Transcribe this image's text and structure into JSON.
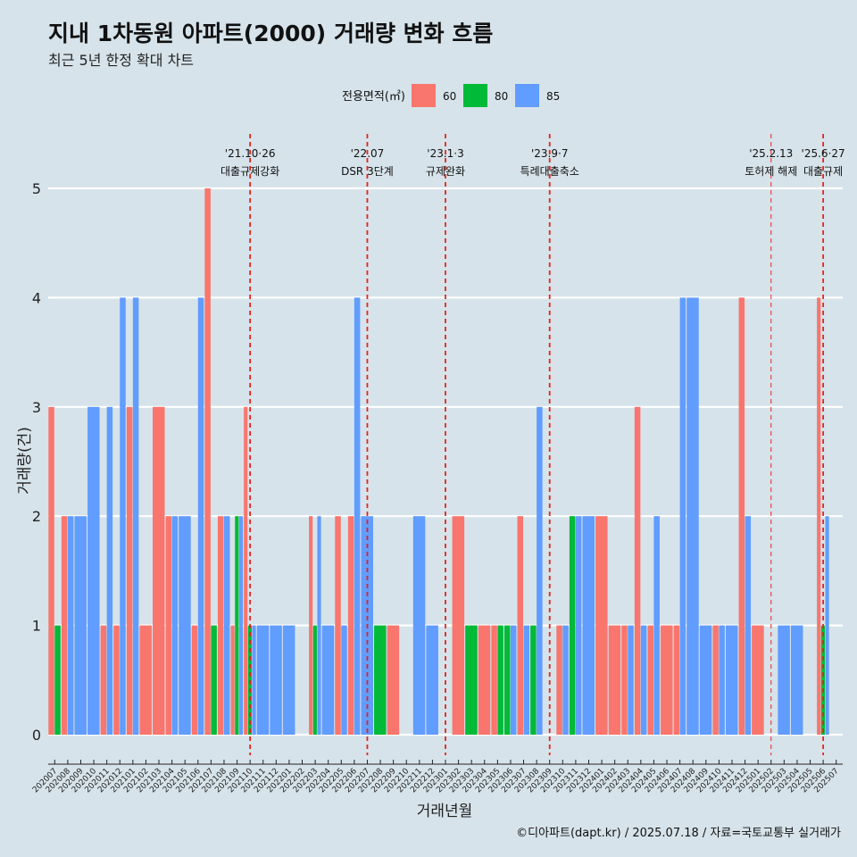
{
  "title": "지내 1차동원 아파트(2000) 거래량 변화 흐름",
  "subtitle": "최근 5년 한정 확대 차트",
  "caption": "©디아파트(dapt.kr) / 2025.07.18 / 자료=국토교통부 실거래가",
  "chart_data": {
    "type": "bar",
    "xlabel": "거래년월",
    "ylabel": "거래량(건)",
    "ylim": [
      0,
      5
    ],
    "yticks": [
      "0",
      "1",
      "2",
      "3",
      "4",
      "5"
    ],
    "legend": {
      "title": "전용면적(㎡)",
      "position": "top",
      "items": [
        {
          "name": "60",
          "color": "#f8766d"
        },
        {
          "name": "80",
          "color": "#00ba38"
        },
        {
          "name": "85",
          "color": "#619cff"
        }
      ]
    },
    "categories": [
      "202007",
      "202008",
      "202009",
      "202010",
      "202011",
      "202012",
      "202101",
      "202102",
      "202103",
      "202104",
      "202105",
      "202106",
      "202107",
      "202108",
      "202109",
      "202110",
      "202111",
      "202112",
      "202201",
      "202202",
      "202203",
      "202204",
      "202205",
      "202206",
      "202207",
      "202208",
      "202209",
      "202210",
      "202211",
      "202212",
      "202301",
      "202302",
      "202303",
      "202304",
      "202305",
      "202306",
      "202307",
      "202308",
      "202309",
      "202310",
      "202311",
      "202312",
      "202401",
      "202402",
      "202403",
      "202404",
      "202405",
      "202406",
      "202407",
      "202408",
      "202409",
      "202410",
      "202411",
      "202412",
      "202501",
      "202502",
      "202503",
      "202504",
      "202505",
      "202506",
      "202507"
    ],
    "series": [
      {
        "name": "60",
        "values": [
          3,
          2,
          0,
          0,
          1,
          1,
          3,
          1,
          3,
          2,
          0,
          1,
          5,
          2,
          1,
          3,
          0,
          0,
          0,
          0,
          2,
          0,
          2,
          2,
          0,
          0,
          1,
          0,
          0,
          0,
          0,
          2,
          0,
          1,
          1,
          0,
          2,
          0,
          0,
          1,
          0,
          0,
          2,
          1,
          1,
          3,
          1,
          1,
          1,
          0,
          0,
          1,
          0,
          4,
          1,
          0,
          0,
          0,
          0,
          4,
          0
        ]
      },
      {
        "name": "80",
        "values": [
          1,
          0,
          0,
          0,
          0,
          0,
          0,
          0,
          0,
          0,
          0,
          0,
          1,
          0,
          2,
          1,
          0,
          0,
          0,
          0,
          1,
          0,
          0,
          0,
          0,
          1,
          0,
          0,
          0,
          0,
          0,
          0,
          1,
          0,
          1,
          1,
          0,
          1,
          0,
          0,
          2,
          0,
          0,
          0,
          0,
          0,
          0,
          0,
          0,
          0,
          0,
          0,
          0,
          0,
          0,
          0,
          0,
          0,
          0,
          1,
          0
        ]
      },
      {
        "name": "85",
        "values": [
          0,
          2,
          2,
          3,
          3,
          4,
          4,
          0,
          0,
          2,
          2,
          4,
          0,
          2,
          2,
          1,
          1,
          1,
          1,
          0,
          2,
          1,
          1,
          4,
          2,
          0,
          0,
          0,
          2,
          1,
          0,
          0,
          0,
          0,
          0,
          1,
          1,
          3,
          0,
          1,
          2,
          2,
          0,
          0,
          1,
          1,
          2,
          0,
          4,
          4,
          1,
          1,
          1,
          2,
          0,
          0,
          1,
          1,
          0,
          2,
          0
        ]
      }
    ],
    "annotations": [
      {
        "at": "202110",
        "date": "'21.10·26",
        "label": "대출규제강화",
        "style": "bold"
      },
      {
        "at": "202207",
        "date": "'22.07",
        "label": "DSR 3단계",
        "style": "bold"
      },
      {
        "at": "202301",
        "date": "'23.1·3",
        "label": "규제완화",
        "style": "bold"
      },
      {
        "at": "202309",
        "date": "'23.9·7",
        "label": "특례대출축소",
        "style": "bold"
      },
      {
        "at": "202502",
        "date": "'25.2.13",
        "label": "토허제 해제",
        "style": "thin"
      },
      {
        "at": "202506",
        "date": "'25.6·27",
        "label": "대출규제",
        "style": "bold"
      }
    ]
  }
}
